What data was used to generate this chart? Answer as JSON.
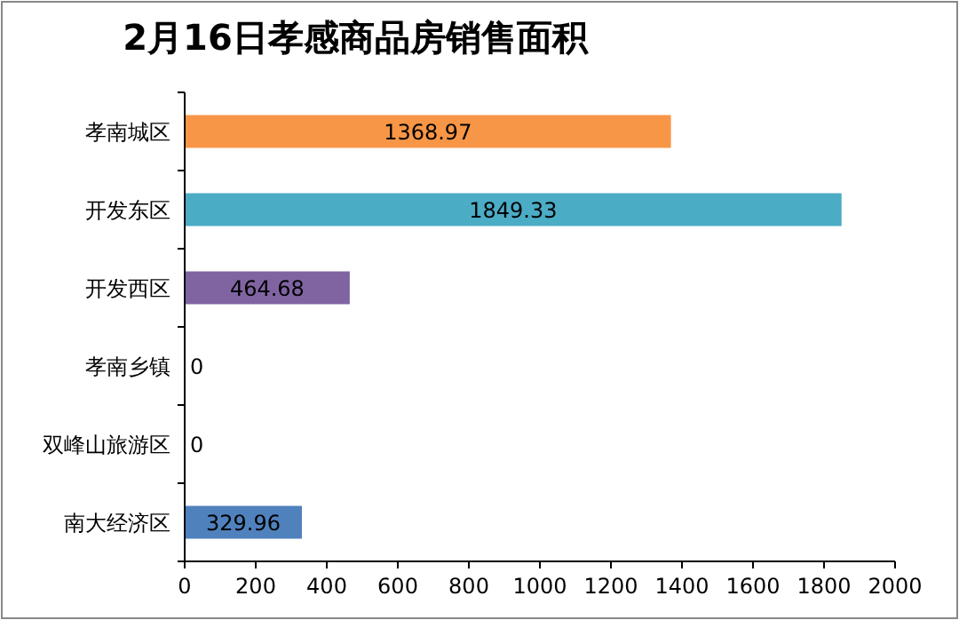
{
  "chart_data": {
    "type": "bar",
    "orientation": "horizontal",
    "title": "2月16日孝感商品房销售面积",
    "categories": [
      "孝南城区",
      "开发东区",
      "开发西区",
      "孝南乡镇",
      "双峰山旅游区",
      "南大经济区"
    ],
    "values": [
      1368.97,
      1849.33,
      464.68,
      0,
      0,
      329.96
    ],
    "colors": [
      "#f79646",
      "#4bacc6",
      "#8064a2",
      "#4f81bd",
      "#4f81bd",
      "#4f81bd"
    ],
    "xlim": [
      0,
      2000
    ],
    "xticks": [
      0,
      200,
      400,
      600,
      800,
      1000,
      1200,
      1400,
      1600,
      1800,
      2000
    ],
    "data_labels": true
  }
}
